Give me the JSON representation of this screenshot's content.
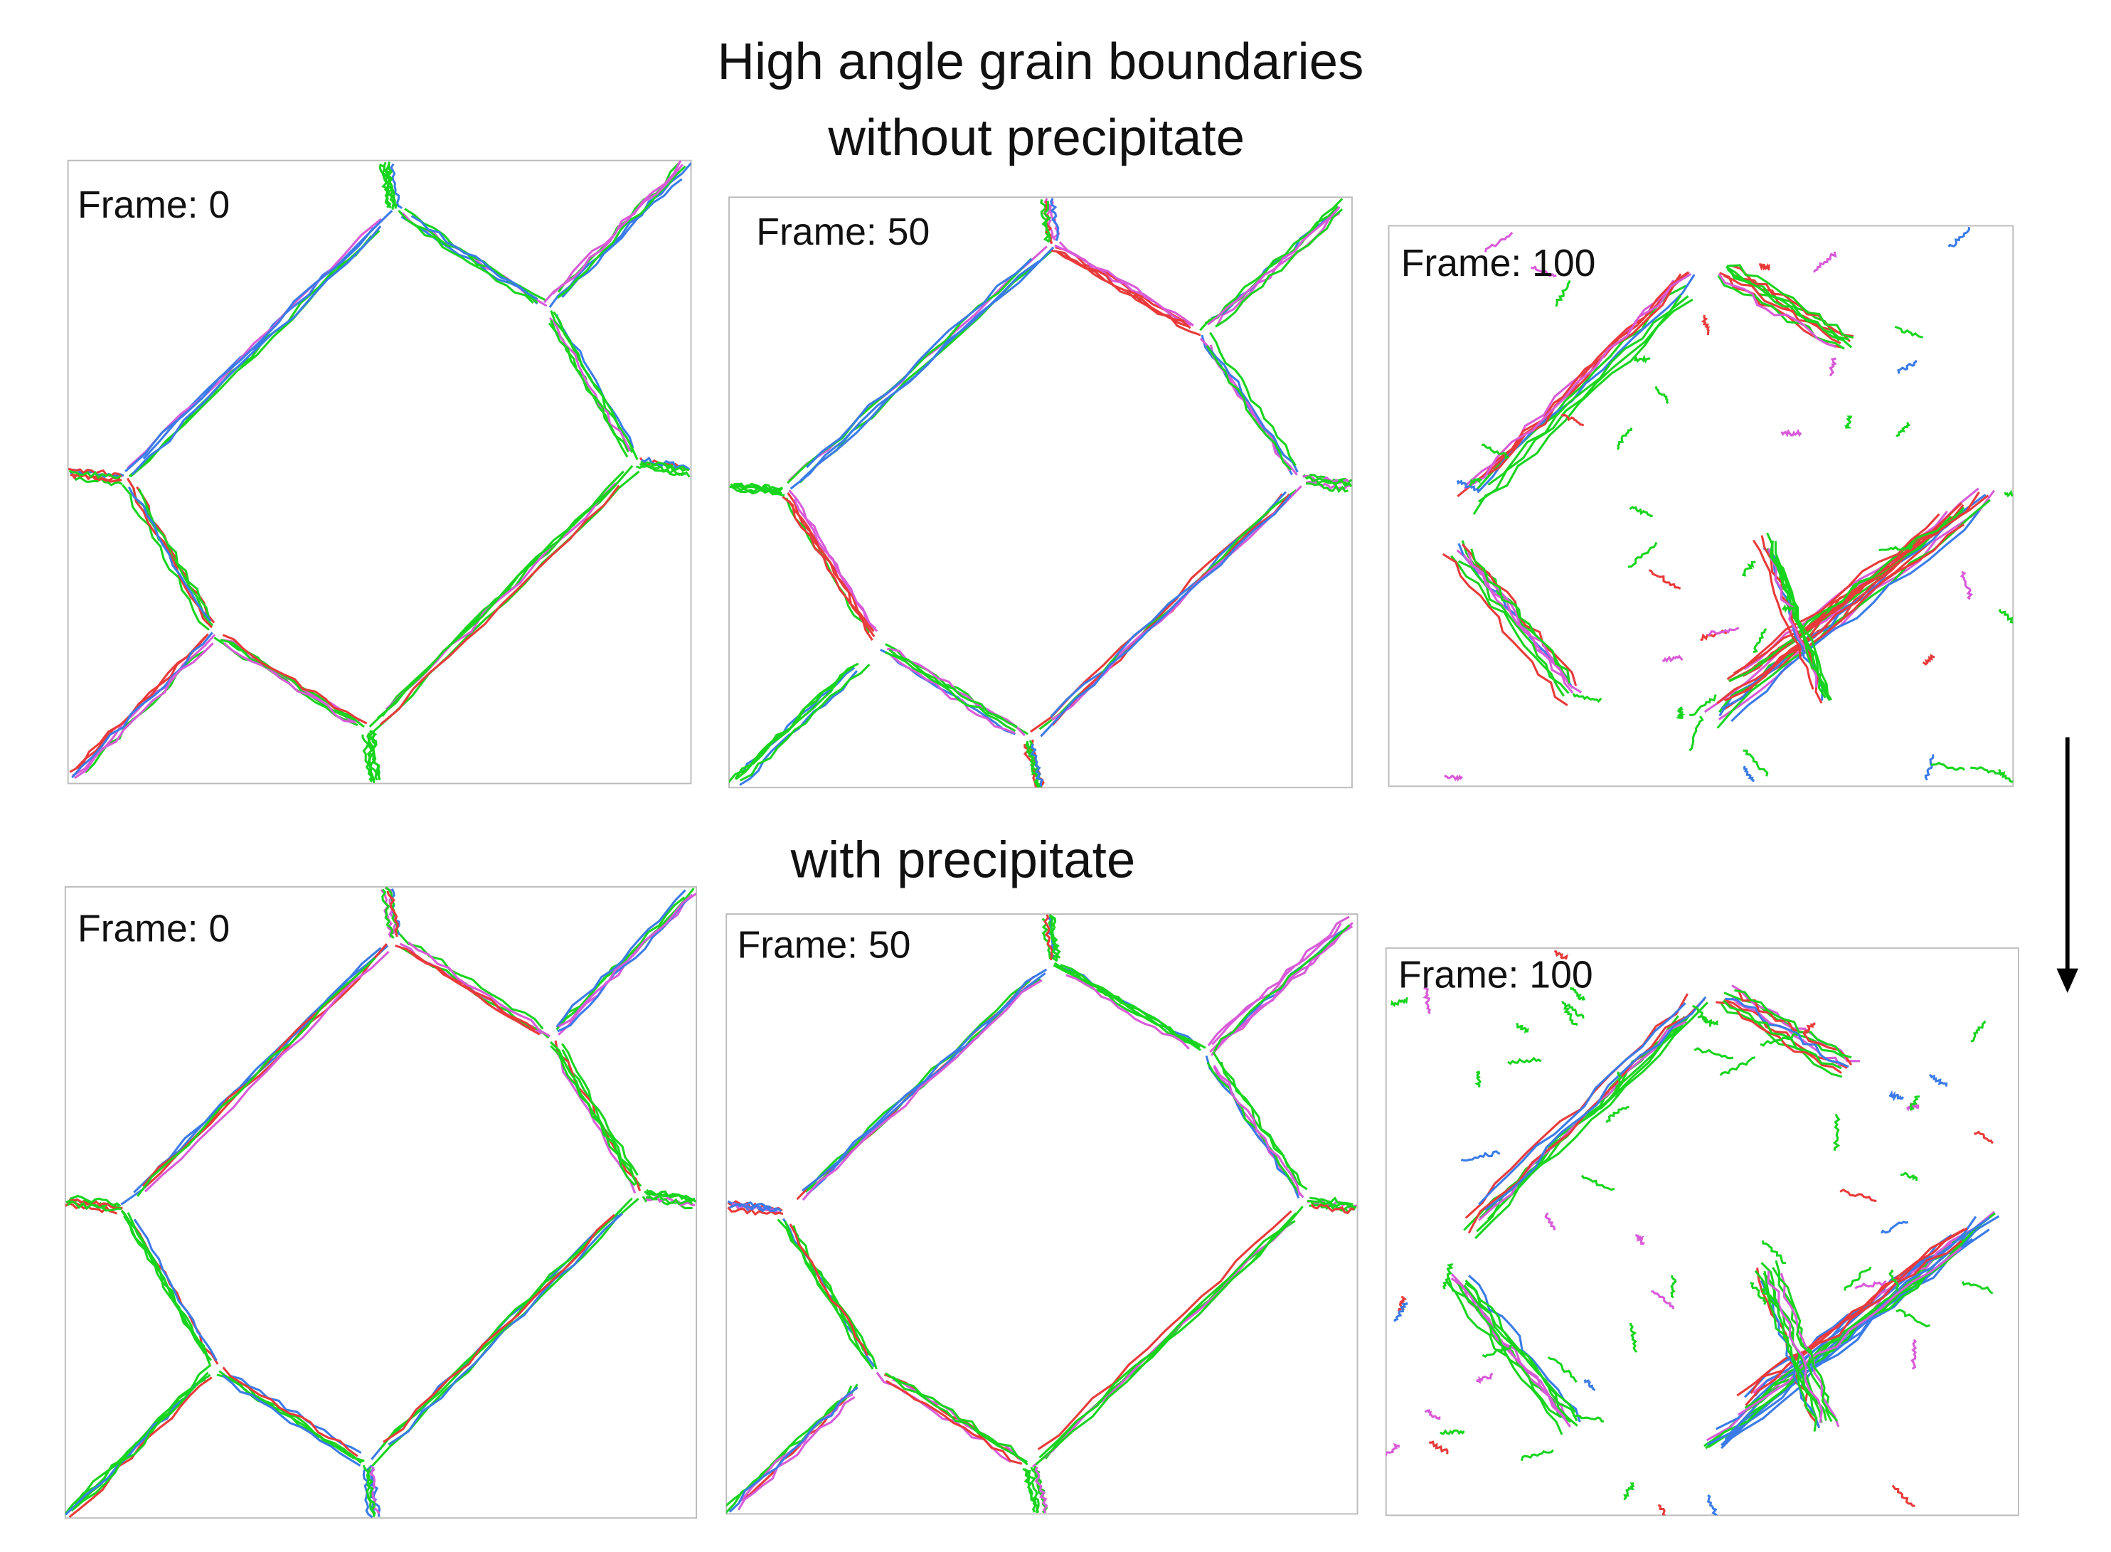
{
  "header": {
    "title_lines": [
      "High angle grain boundaries",
      "without precipitate"
    ]
  },
  "rows": [
    {
      "panels": [
        {
          "label": "Frame: 0"
        },
        {
          "label": "Frame: 50"
        },
        {
          "label": "Frame: 100"
        }
      ]
    },
    {
      "heading": "with precipitate",
      "panels": [
        {
          "label": "Frame: 0"
        },
        {
          "label": "Frame: 50"
        },
        {
          "label": "Frame: 100"
        }
      ]
    }
  ]
}
